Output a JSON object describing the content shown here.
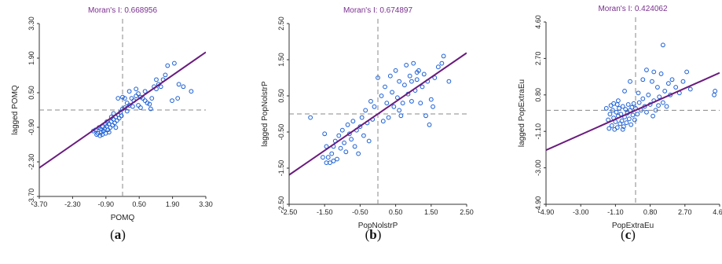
{
  "chart_data": [
    {
      "type": "scatter",
      "panel": "(a)",
      "caption_letter": "a",
      "title": "Moran's I: 0.668956",
      "xlabel": "POMQ",
      "ylabel": "lagged POMQ",
      "xlim": [
        -3.7,
        3.7
      ],
      "ylim": [
        -3.7,
        3.7
      ],
      "xticks": [
        "-3.70",
        "-2.30",
        "-0.90",
        "0.50",
        "1.90",
        "3.30"
      ],
      "yticks": [
        "-3.70",
        "-2.30",
        "-0.90",
        "0.50",
        "1.90",
        "3.30"
      ],
      "slope": 0.669,
      "grid": false,
      "points": [
        [
          -1.1,
          -1.0
        ],
        [
          -1.0,
          -1.1
        ],
        [
          -0.95,
          -0.95
        ],
        [
          -0.9,
          -1.05
        ],
        [
          -0.85,
          -0.9
        ],
        [
          -1.2,
          -0.85
        ],
        [
          -1.05,
          -0.75
        ],
        [
          -0.8,
          -0.8
        ],
        [
          -0.75,
          -1.0
        ],
        [
          -0.7,
          -0.7
        ],
        [
          -0.65,
          -0.85
        ],
        [
          -0.6,
          -0.6
        ],
        [
          -0.55,
          -0.75
        ],
        [
          -0.5,
          -0.5
        ],
        [
          -0.45,
          -0.65
        ],
        [
          -0.4,
          -0.4
        ],
        [
          -0.35,
          -0.55
        ],
        [
          -0.3,
          -0.3
        ],
        [
          -0.25,
          -0.45
        ],
        [
          -0.2,
          -0.2
        ],
        [
          -0.15,
          -0.35
        ],
        [
          -0.1,
          -0.1
        ],
        [
          -0.05,
          -0.25
        ],
        [
          0.0,
          0.05
        ],
        [
          0.1,
          0.1
        ],
        [
          0.2,
          0.3
        ],
        [
          0.3,
          0.2
        ],
        [
          0.4,
          0.5
        ],
        [
          0.5,
          0.4
        ],
        [
          0.6,
          0.6
        ],
        [
          0.7,
          0.7
        ],
        [
          0.8,
          0.55
        ],
        [
          0.9,
          0.5
        ],
        [
          1.0,
          0.4
        ],
        [
          1.1,
          0.3
        ],
        [
          1.2,
          0.25
        ],
        [
          0.7,
          0.2
        ],
        [
          0.8,
          0.1
        ],
        [
          0.45,
          0.15
        ],
        [
          0.2,
          -0.05
        ],
        [
          1.3,
          0.5
        ],
        [
          1.4,
          1.0
        ],
        [
          1.5,
          0.9
        ],
        [
          1.6,
          1.1
        ],
        [
          1.7,
          1.0
        ],
        [
          1.8,
          1.3
        ],
        [
          1.9,
          1.5
        ],
        [
          2.0,
          1.9
        ],
        [
          2.3,
          2.0
        ],
        [
          2.5,
          1.1
        ],
        [
          2.7,
          1.0
        ],
        [
          2.2,
          0.4
        ],
        [
          2.45,
          0.5
        ],
        [
          3.05,
          0.8
        ],
        [
          1.25,
          0.05
        ],
        [
          1.0,
          0.8
        ],
        [
          0.0,
          0.55
        ],
        [
          -0.2,
          0.5
        ],
        [
          0.1,
          0.5
        ],
        [
          -1.3,
          -0.9
        ],
        [
          -1.15,
          -1.05
        ],
        [
          -0.98,
          -0.82
        ],
        [
          -0.88,
          -0.72
        ],
        [
          -0.6,
          -0.95
        ],
        [
          -0.3,
          -0.75
        ],
        [
          -0.7,
          -0.5
        ],
        [
          -0.5,
          -0.3
        ],
        [
          0.6,
          0.9
        ],
        [
          0.3,
          0.8
        ],
        [
          1.5,
          1.3
        ],
        [
          -0.75,
          -0.6
        ],
        [
          -0.4,
          -0.15
        ]
      ]
    },
    {
      "type": "scatter",
      "panel": "(b)",
      "caption_letter": "b",
      "title": "Moran's I: 0.674897",
      "xlabel": "PopNolstrP",
      "ylabel": "lagged PopNolstrP",
      "xlim": [
        -2.5,
        2.5
      ],
      "ylim": [
        -2.5,
        2.5
      ],
      "xticks": [
        "-2.50",
        "-1.50",
        "-0.50",
        "0.50",
        "1.50",
        "2.50"
      ],
      "yticks": [
        "-2.50",
        "-1.50",
        "-0.50",
        "0.50",
        "1.50",
        "2.50"
      ],
      "slope": 0.675,
      "grid": false,
      "points": [
        [
          -1.9,
          -0.1
        ],
        [
          -1.5,
          -0.55
        ],
        [
          -1.45,
          -0.9
        ],
        [
          -1.4,
          -1.2
        ],
        [
          -1.35,
          -1.35
        ],
        [
          -1.3,
          -1.1
        ],
        [
          -1.25,
          -0.9
        ],
        [
          -1.2,
          -0.75
        ],
        [
          -1.15,
          -1.25
        ],
        [
          -1.1,
          -0.6
        ],
        [
          -1.05,
          -0.95
        ],
        [
          -1.0,
          -0.45
        ],
        [
          -0.95,
          -0.8
        ],
        [
          -0.9,
          -1.05
        ],
        [
          -0.85,
          -0.3
        ],
        [
          -0.8,
          -0.55
        ],
        [
          -0.75,
          -0.7
        ],
        [
          -0.7,
          -0.2
        ],
        [
          -0.65,
          -0.9
        ],
        [
          -0.6,
          -0.45
        ],
        [
          -0.55,
          -1.1
        ],
        [
          -0.5,
          -0.35
        ],
        [
          -0.45,
          -0.1
        ],
        [
          -0.4,
          -0.6
        ],
        [
          -0.35,
          0.1
        ],
        [
          -0.3,
          -0.25
        ],
        [
          -0.25,
          -0.75
        ],
        [
          -0.2,
          0.35
        ],
        [
          -0.15,
          -0.15
        ],
        [
          -0.1,
          0.2
        ],
        [
          0.0,
          1.0
        ],
        [
          0.1,
          0.5
        ],
        [
          0.15,
          -0.2
        ],
        [
          0.2,
          0.75
        ],
        [
          0.25,
          0.3
        ],
        [
          0.3,
          -0.1
        ],
        [
          0.35,
          1.05
        ],
        [
          0.4,
          0.6
        ],
        [
          0.45,
          0.2
        ],
        [
          0.5,
          1.2
        ],
        [
          0.55,
          0.45
        ],
        [
          0.6,
          0.9
        ],
        [
          0.65,
          -0.05
        ],
        [
          0.7,
          0.3
        ],
        [
          0.75,
          0.8
        ],
        [
          0.8,
          1.35
        ],
        [
          0.85,
          0.55
        ],
        [
          0.9,
          1.05
        ],
        [
          0.95,
          0.9
        ],
        [
          1.0,
          1.4
        ],
        [
          1.05,
          0.65
        ],
        [
          1.1,
          0.95
        ],
        [
          1.15,
          1.2
        ],
        [
          1.2,
          0.3
        ],
        [
          1.25,
          0.75
        ],
        [
          1.3,
          1.1
        ],
        [
          1.35,
          -0.05
        ],
        [
          1.4,
          0.9
        ],
        [
          1.45,
          -0.3
        ],
        [
          1.5,
          0.4
        ],
        [
          1.55,
          0.2
        ],
        [
          1.6,
          1.0
        ],
        [
          1.7,
          1.3
        ],
        [
          1.8,
          1.4
        ],
        [
          1.85,
          1.6
        ],
        [
          2.0,
          0.9
        ],
        [
          1.1,
          1.15
        ],
        [
          0.95,
          0.35
        ],
        [
          0.6,
          0.1
        ],
        [
          -1.55,
          -1.2
        ],
        [
          -1.45,
          -1.35
        ],
        [
          -1.25,
          -1.3
        ]
      ]
    },
    {
      "type": "scatter",
      "panel": "(c)",
      "caption_letter": "c",
      "title": "Moran's I: 0.424062",
      "xlabel": "PopExtraEu",
      "ylabel": "lagged PopExtraEu",
      "xlim": [
        -4.9,
        4.6
      ],
      "ylim": [
        -4.9,
        4.6
      ],
      "xticks": [
        "-4.90",
        "-3.00",
        "-1.10",
        "0.80",
        "2.70",
        "4.60"
      ],
      "yticks": [
        "-4.90",
        "-3.00",
        "-1.10",
        "0.80",
        "2.70",
        "4.60"
      ],
      "slope": 0.424,
      "grid": false,
      "points": [
        [
          -1.5,
          -0.5
        ],
        [
          -1.4,
          -0.2
        ],
        [
          -1.3,
          -0.8
        ],
        [
          -1.25,
          0.0
        ],
        [
          -1.2,
          -0.4
        ],
        [
          -1.15,
          -1.0
        ],
        [
          -1.1,
          -0.6
        ],
        [
          -1.05,
          -0.1
        ],
        [
          -1.0,
          -0.9
        ],
        [
          -0.95,
          -0.3
        ],
        [
          -0.9,
          0.1
        ],
        [
          -0.85,
          -0.7
        ],
        [
          -0.8,
          -0.2
        ],
        [
          -0.75,
          -0.55
        ],
        [
          -0.7,
          0.2
        ],
        [
          -0.65,
          -0.85
        ],
        [
          -0.6,
          -0.35
        ],
        [
          -0.55,
          0.05
        ],
        [
          -0.5,
          -0.65
        ],
        [
          -0.45,
          -0.15
        ],
        [
          -0.4,
          0.3
        ],
        [
          -0.35,
          -0.45
        ],
        [
          -0.3,
          0.0
        ],
        [
          -0.25,
          -0.75
        ],
        [
          -0.2,
          0.15
        ],
        [
          -0.15,
          -0.25
        ],
        [
          -0.1,
          0.35
        ],
        [
          -0.05,
          -0.5
        ],
        [
          0.0,
          0.1
        ],
        [
          0.1,
          -0.2
        ],
        [
          0.2,
          0.4
        ],
        [
          0.3,
          0.0
        ],
        [
          0.4,
          0.6
        ],
        [
          0.5,
          0.2
        ],
        [
          0.6,
          -0.1
        ],
        [
          0.7,
          0.8
        ],
        [
          0.8,
          0.3
        ],
        [
          0.9,
          1.5
        ],
        [
          1.0,
          0.5
        ],
        [
          1.1,
          0.0
        ],
        [
          1.2,
          1.2
        ],
        [
          1.3,
          0.7
        ],
        [
          1.4,
          1.9
        ],
        [
          1.5,
          0.4
        ],
        [
          1.6,
          1.0
        ],
        [
          1.7,
          0.2
        ],
        [
          1.8,
          1.4
        ],
        [
          1.9,
          0.8
        ],
        [
          2.0,
          1.6
        ],
        [
          2.2,
          1.2
        ],
        [
          2.4,
          0.9
        ],
        [
          2.6,
          1.5
        ],
        [
          2.8,
          2.0
        ],
        [
          3.0,
          1.1
        ],
        [
          1.5,
          3.4
        ],
        [
          4.3,
          0.8
        ],
        [
          4.35,
          1.0
        ],
        [
          0.4,
          1.6
        ],
        [
          0.6,
          2.1
        ],
        [
          1.0,
          2.0
        ],
        [
          -0.6,
          1.0
        ],
        [
          -0.3,
          1.5
        ],
        [
          -1.6,
          0.1
        ],
        [
          -1.45,
          -0.95
        ],
        [
          -1.2,
          0.35
        ],
        [
          -0.95,
          0.5
        ],
        [
          -0.7,
          -1.0
        ],
        [
          0.15,
          0.9
        ],
        [
          0.95,
          -0.3
        ],
        [
          1.25,
          0.25
        ],
        [
          -1.35,
          0.25
        ],
        [
          -1.0,
          0.3
        ]
      ]
    }
  ]
}
